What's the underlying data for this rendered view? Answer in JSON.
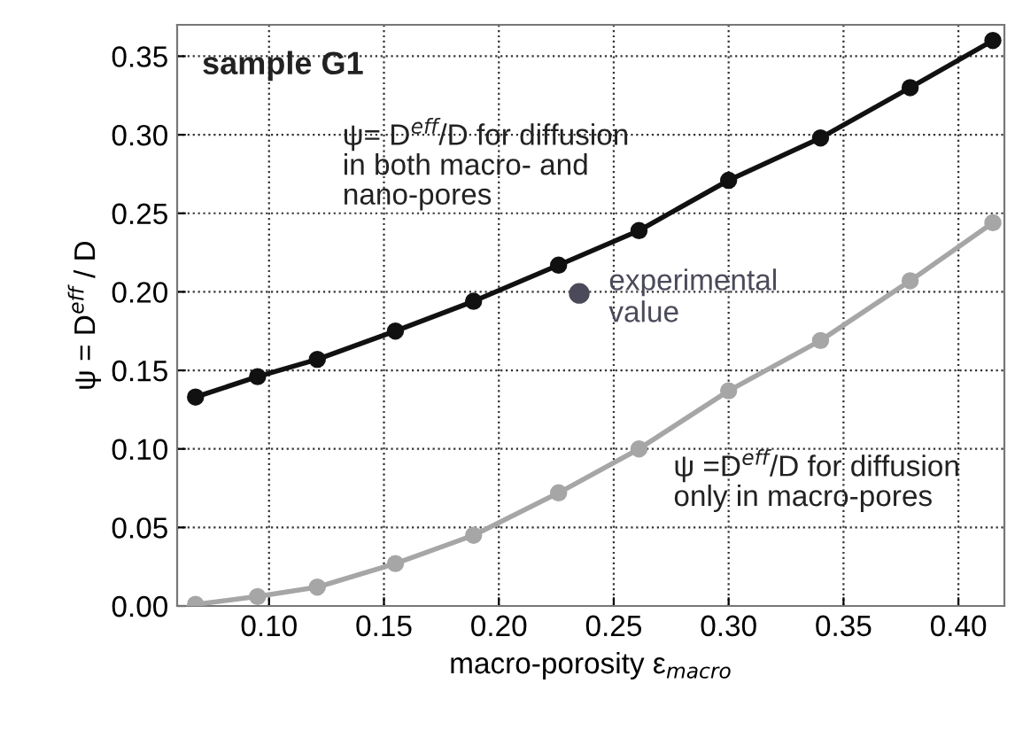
{
  "chart_data": {
    "type": "line",
    "xlabel": "macro-porosity ε$_{macro}$",
    "ylabel": "ψ = D$^{eff}$ / D",
    "xlim": [
      0.06,
      0.42
    ],
    "ylim": [
      0,
      0.37
    ],
    "xticks": [
      {
        "value": 0.1,
        "label": "0.10"
      },
      0.15,
      {
        "value": 0.2,
        "label": "0.20"
      },
      0.25,
      {
        "value": 0.3,
        "label": "0.30"
      },
      0.35,
      {
        "value": 0.4,
        "label": "0.40"
      }
    ],
    "yticks": [
      {
        "value": 0,
        "label": "0.00"
      },
      0.05,
      {
        "value": 0.1,
        "label": "0.10"
      },
      0.15,
      {
        "value": 0.2,
        "label": "0.20"
      },
      0.25,
      {
        "value": 0.3,
        "label": "0.30"
      },
      0.35
    ],
    "grid": true,
    "marker": "circle",
    "line_style": "solid",
    "series": [
      {
        "color": "#111111",
        "x": [
          0.068,
          0.095,
          0.121,
          0.155,
          0.189,
          0.226,
          0.261,
          0.3,
          0.34,
          0.379,
          0.415
        ],
        "values": [
          0.133,
          0.146,
          0.157,
          0.175,
          0.194,
          0.217,
          0.239,
          0.271,
          0.298,
          0.33,
          0.36
        ]
      },
      {
        "color": "#a6a6a6",
        "x": [
          0.068,
          0.095,
          0.121,
          0.155,
          0.189,
          0.226,
          0.261,
          0.3,
          0.34,
          0.379,
          0.415
        ],
        "values": [
          0.001,
          0.006,
          0.012,
          0.027,
          0.045,
          0.072,
          0.1,
          0.137,
          0.169,
          0.207,
          0.244
        ]
      },
      {
        "type": "scatter",
        "name": "experimental\nvalue",
        "color": "#4a4a5a",
        "x": [
          0.235
        ],
        "values": [
          0.199
        ]
      }
    ],
    "annotations": [
      "sample G1",
      "ψ= D$^{eff}$/D for diffusion\nin both macro- and\nnano-pores",
      "ψ =D$^{eff}$/D for diffusion\nonly in macro-pores"
    ]
  }
}
